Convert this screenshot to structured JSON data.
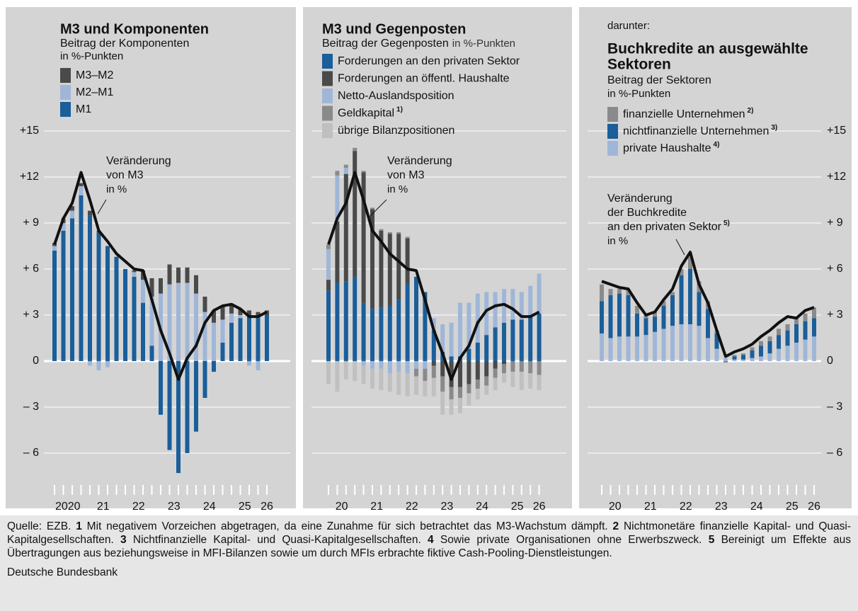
{
  "chart_data": [
    {
      "type": "bar",
      "title": "M3 und Komponenten",
      "subtitle": "Beitrag der Komponenten",
      "unit": "in %-Punkten",
      "years": [
        "2020",
        "21",
        "22",
        "23",
        "24",
        "25",
        "26"
      ],
      "ylim": [
        -8,
        15
      ],
      "yticks": [
        {
          "value": 15,
          "label": "+15"
        },
        {
          "value": 12,
          "label": "+12"
        },
        {
          "value": 9,
          "label": "+ 9"
        },
        {
          "value": 6,
          "label": "+ 6"
        },
        {
          "value": 3,
          "label": "+ 3"
        },
        0,
        {
          "value": -3,
          "label": "– 3"
        },
        {
          "value": -6,
          "label": "– 6"
        }
      ],
      "series": [
        {
          "name": "M3–M2",
          "color": "#4a4a4a",
          "values": [
            0.2,
            0.3,
            0.3,
            0.2,
            0.3,
            0.0,
            0.0,
            0.0,
            0.0,
            0.1,
            0.6,
            1.2,
            1.0,
            1.3,
            1.0,
            1.0,
            1.2,
            1.0,
            0.8,
            0.9,
            0.5,
            0.4,
            0.3,
            0.2,
            0.3
          ]
        },
        {
          "name": "M2–M1",
          "color": "#9fb6d8",
          "values": [
            0.3,
            0.5,
            0.5,
            0.6,
            -0.3,
            -0.6,
            -0.4,
            0.0,
            0.0,
            0.3,
            1.5,
            3.2,
            4.4,
            5.0,
            5.1,
            5.1,
            4.4,
            3.2,
            2.5,
            1.5,
            0.6,
            0.2,
            -0.3,
            -0.6,
            0.0
          ]
        },
        {
          "name": "M1",
          "color": "#1a5e9a",
          "values": [
            7.2,
            8.5,
            9.3,
            10.8,
            9.5,
            8.5,
            7.5,
            6.8,
            6.0,
            5.5,
            3.8,
            1.0,
            -3.5,
            -5.8,
            -7.3,
            -6.0,
            -4.6,
            -2.4,
            -0.7,
            1.2,
            2.5,
            2.8,
            3.0,
            3.0,
            3.0
          ]
        }
      ],
      "line": {
        "color": "#111111",
        "annotation": [
          "Veränderung",
          "von M3",
          "in %"
        ],
        "values": [
          7.6,
          9.3,
          10.3,
          12.3,
          10.5,
          8.5,
          7.8,
          7.0,
          6.5,
          6.0,
          5.9,
          4.0,
          2.0,
          0.5,
          -1.2,
          0.2,
          1.0,
          2.5,
          3.3,
          3.6,
          3.7,
          3.4,
          2.9,
          2.9,
          3.2
        ]
      }
    },
    {
      "type": "bar",
      "title": "M3 und Gegenposten",
      "subtitle": "Beitrag der Gegenposten",
      "unit": "in %-Punkten",
      "years": [
        "20",
        "21",
        "22",
        "23",
        "24",
        "25",
        "26"
      ],
      "ylim": [
        -8,
        15
      ],
      "yticks": [
        15,
        12,
        9,
        6,
        3,
        0,
        -3,
        -6
      ],
      "series": [
        {
          "name": "Forderungen an den privaten Sektor",
          "color": "#1a5e9a",
          "values": [
            4.6,
            5.1,
            5.2,
            5.5,
            3.8,
            3.4,
            3.5,
            3.6,
            4.0,
            5.0,
            5.5,
            4.5,
            2.0,
            0.6,
            0.3,
            0.3,
            0.8,
            1.2,
            1.7,
            2.2,
            2.5,
            2.7,
            2.7,
            2.9,
            3.1
          ]
        },
        {
          "name": "Forderungen an öffentl. Haushalte",
          "color": "#4a4a4a",
          "values": [
            0.7,
            4.0,
            7.0,
            8.2,
            8.5,
            6.5,
            5.0,
            4.7,
            4.3,
            3.0,
            0.0,
            0.0,
            -0.3,
            -1.0,
            -1.7,
            -1.7,
            -1.5,
            -1.2,
            -1.0,
            -0.5,
            -0.2,
            0.0,
            0.0,
            0.0,
            0.0
          ]
        },
        {
          "name": "Netto-Auslandsposition",
          "color": "#9fb6d8",
          "values": [
            2.0,
            3.0,
            0.4,
            0.0,
            -0.3,
            -0.5,
            -0.5,
            -0.8,
            -0.7,
            -0.8,
            -0.5,
            -0.5,
            0.8,
            1.8,
            2.2,
            3.5,
            3.0,
            3.2,
            2.8,
            2.3,
            2.2,
            2.0,
            1.8,
            2.0,
            2.6
          ]
        },
        {
          "name": "Geldkapital",
          "note": "1)",
          "color": "#8a8a8a",
          "values": [
            0.3,
            0.3,
            0.2,
            0.2,
            0.1,
            0.1,
            0.1,
            0.1,
            0.1,
            0.1,
            -0.5,
            -0.8,
            -0.8,
            -1.0,
            -0.8,
            -0.7,
            -0.6,
            -0.6,
            -0.6,
            -0.6,
            -0.6,
            -0.7,
            -0.7,
            -0.8,
            -0.9
          ]
        },
        {
          "name": "übrige Bilanzpositionen",
          "color": "#c0c0c0",
          "values": [
            -1.5,
            -2.0,
            -1.2,
            -1.3,
            -1.2,
            -1.3,
            -1.4,
            -1.2,
            -1.5,
            -1.5,
            -1.2,
            -1.0,
            -1.2,
            -1.5,
            -1.0,
            -1.0,
            -0.8,
            -0.7,
            -0.6,
            -0.8,
            -0.6,
            -1.0,
            -1.2,
            -1.0,
            -1.0
          ]
        }
      ],
      "line": {
        "color": "#111111",
        "annotation": [
          "Veränderung",
          "von M3",
          "in %"
        ],
        "values": [
          7.6,
          9.3,
          10.3,
          12.3,
          10.5,
          8.5,
          7.8,
          7.0,
          6.5,
          6.0,
          5.9,
          4.0,
          2.0,
          0.5,
          -1.2,
          0.2,
          1.0,
          2.5,
          3.3,
          3.6,
          3.7,
          3.4,
          2.9,
          2.9,
          3.2
        ]
      }
    },
    {
      "type": "bar",
      "pretitle": "darunter:",
      "title": [
        "Buchkredite an ausgewählte",
        "Sektoren"
      ],
      "subtitle": "Beitrag der Sektoren",
      "unit": "in %-Punkten",
      "years": [
        "20",
        "21",
        "22",
        "23",
        "24",
        "25",
        "26"
      ],
      "ylim": [
        -8,
        15
      ],
      "yticks": [
        {
          "value": 15,
          "label": "+15"
        },
        {
          "value": 12,
          "label": "+12"
        },
        {
          "value": 9,
          "label": "+ 9"
        },
        {
          "value": 6,
          "label": "+ 6"
        },
        {
          "value": 3,
          "label": "+ 3"
        },
        0,
        {
          "value": -3,
          "label": "– 3"
        },
        {
          "value": -6,
          "label": "– 6"
        }
      ],
      "series": [
        {
          "name": "finanzielle Unternehmen",
          "note": "2)",
          "color": "#8a8a8a",
          "values": [
            1.1,
            0.4,
            0.3,
            0.4,
            0.5,
            0.2,
            0.3,
            0.3,
            0.2,
            0.4,
            0.8,
            0.7,
            0.5,
            0.2,
            -0.1,
            0.1,
            0.1,
            0.2,
            0.3,
            0.3,
            0.4,
            0.4,
            0.4,
            0.5,
            0.7
          ]
        },
        {
          "name": "nichtfinanzielle Unternehmen",
          "note": "3)",
          "color": "#1a5e9a",
          "values": [
            2.1,
            2.8,
            2.8,
            2.7,
            1.5,
            1.1,
            1.0,
            1.5,
            2.0,
            3.2,
            3.6,
            2.2,
            1.9,
            1.0,
            0.0,
            0.2,
            0.3,
            0.5,
            0.7,
            0.8,
            0.9,
            1.0,
            1.2,
            1.2,
            1.2
          ]
        },
        {
          "name": "private Haushalte",
          "note": "4)",
          "color": "#9fb6d8",
          "values": [
            1.8,
            1.5,
            1.6,
            1.6,
            1.6,
            1.7,
            1.9,
            2.1,
            2.3,
            2.4,
            2.4,
            2.3,
            1.5,
            0.8,
            0.2,
            0.1,
            0.1,
            0.2,
            0.3,
            0.5,
            0.8,
            1.0,
            1.2,
            1.4,
            1.6
          ]
        }
      ],
      "line": {
        "color": "#111111",
        "annotation": [
          "Veränderung",
          "der Buchkredite",
          "an den privaten Sektor",
          "in %"
        ],
        "annotation_note": "5)",
        "values": [
          5.2,
          5.0,
          4.8,
          4.7,
          3.8,
          3.0,
          3.2,
          4.0,
          4.7,
          6.2,
          7.1,
          5.0,
          3.8,
          2.0,
          0.3,
          0.6,
          0.8,
          1.1,
          1.6,
          2.0,
          2.5,
          2.9,
          2.8,
          3.3,
          3.5
        ]
      }
    }
  ],
  "footer": {
    "source": "Quelle: EZB.",
    "notes": [
      {
        "num": "1",
        "text": "Mit negativem Vorzeichen abgetragen, da eine Zunahme für sich betrachtet das M3-Wachstum dämpft."
      },
      {
        "num": "2",
        "text": "Nichtmonetäre finanzielle Kapital- und Quasi-Kapitalgesellschaften."
      },
      {
        "num": "3",
        "text": "Nichtfinanzielle Kapital- und Quasi-Kapitalgesellschaften."
      },
      {
        "num": "4",
        "text": "Sowie private Organisationen ohne Erwerbszweck."
      },
      {
        "num": "5",
        "text": "Bereinigt um Effekte aus Übertragungen aus beziehungsweise in MFI-Bilanzen sowie um durch MFIs erbrachte fiktive Cash-Pooling-Dienstleistungen."
      }
    ],
    "publisher": "Deutsche Bundesbank"
  }
}
